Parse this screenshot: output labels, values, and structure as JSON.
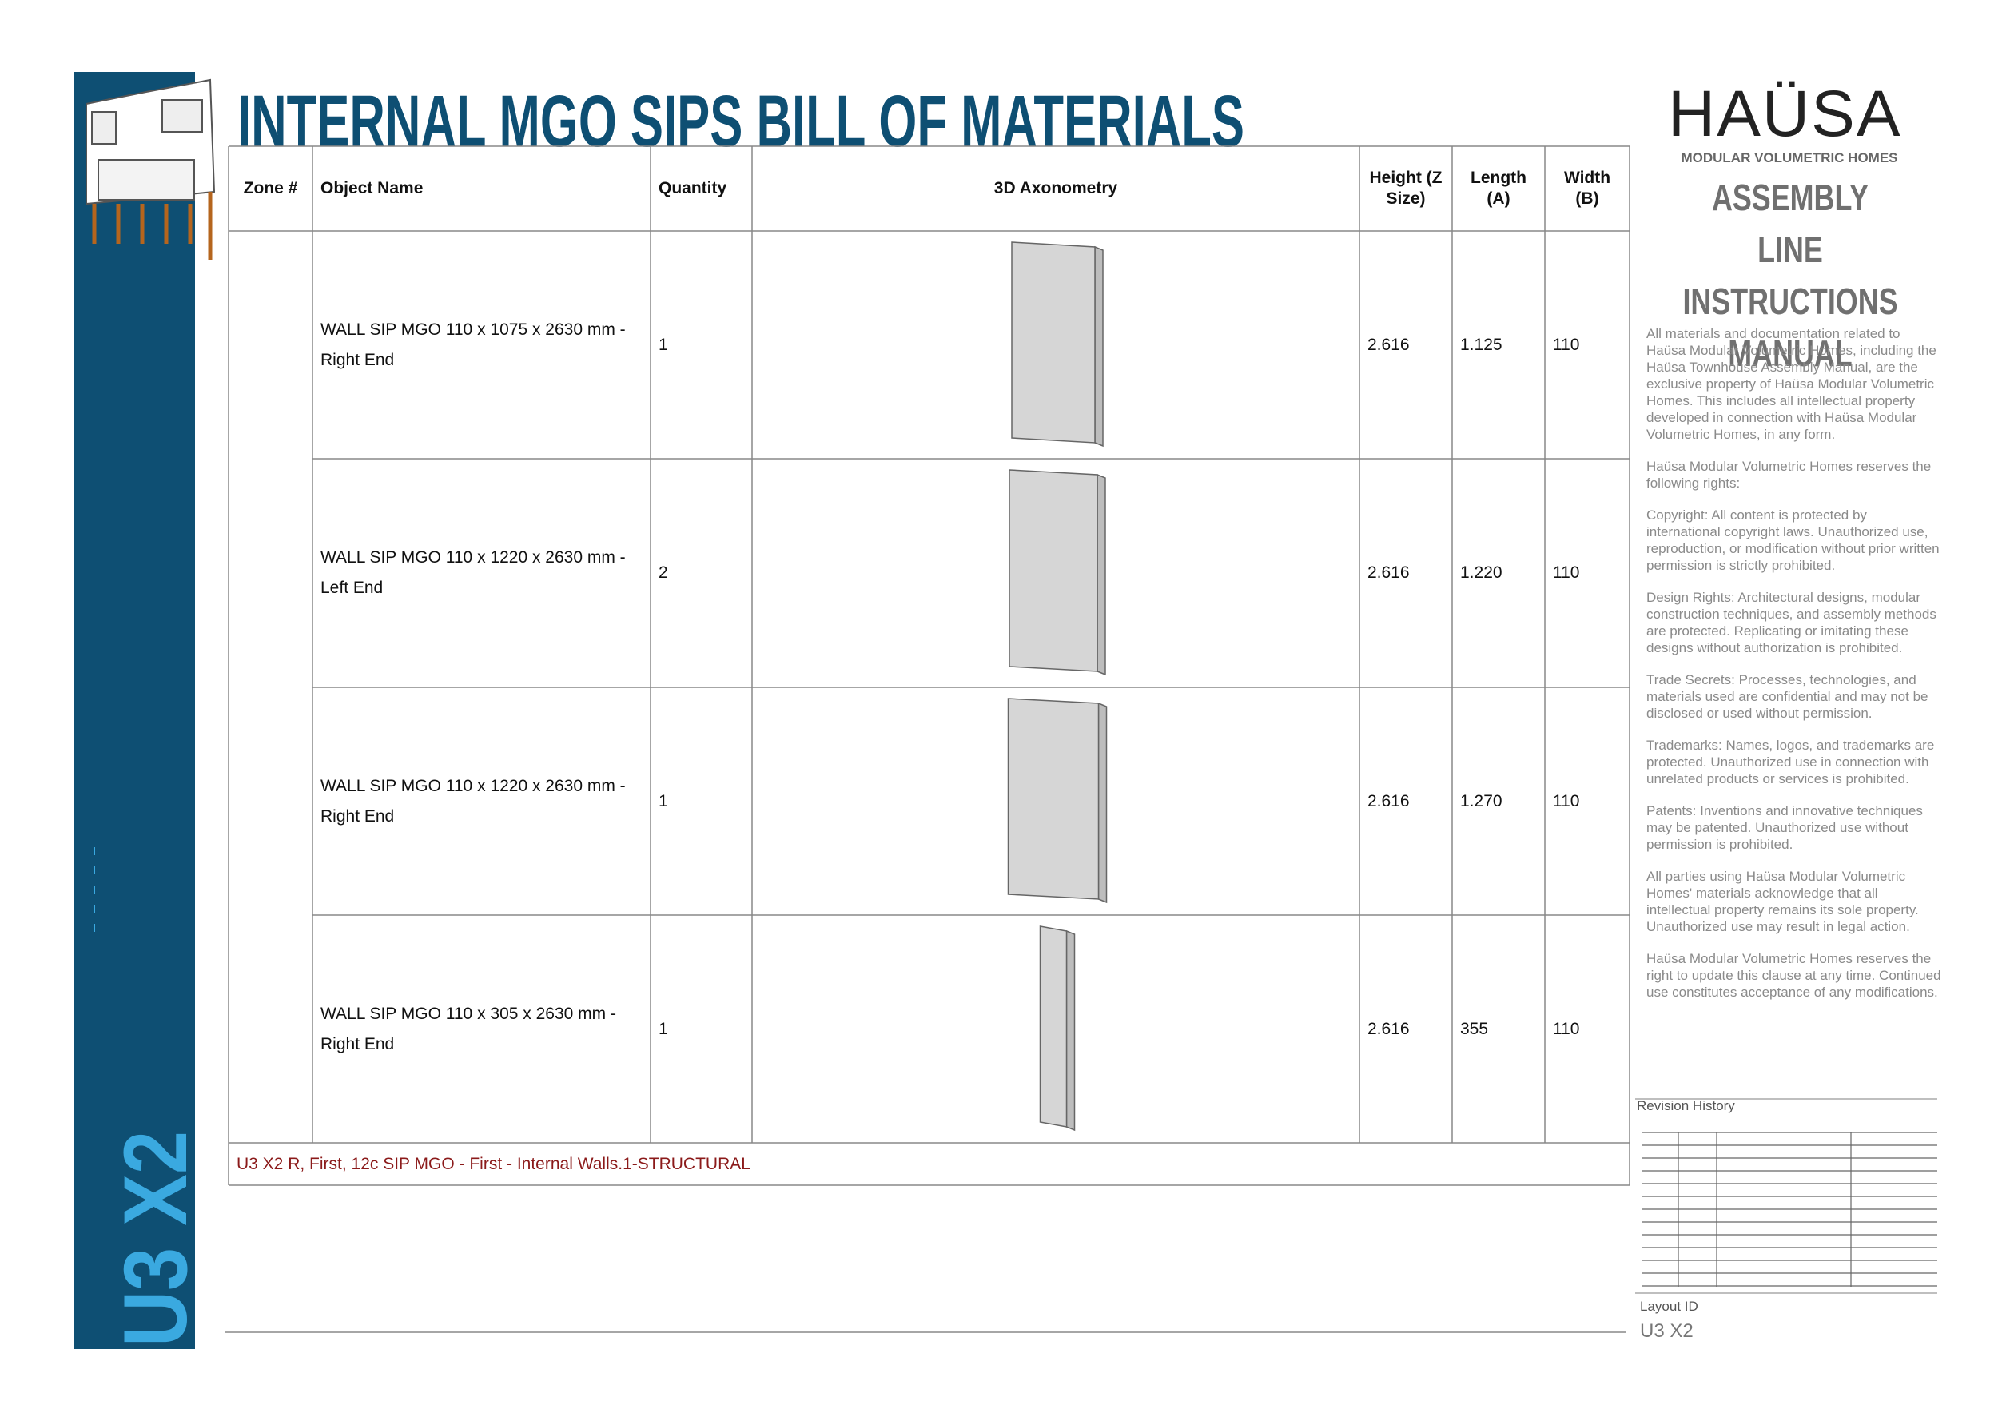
{
  "header": {
    "title": "INTERNAL MGO SIPS BILL OF MATERIALS",
    "sidebar_label": "U3 X2"
  },
  "table": {
    "columns": [
      "Zone #",
      "Object Name",
      "Quantity",
      "3D Axonometry",
      "Height (Z Size)",
      "Length (A)",
      "Width (B)"
    ],
    "rows": [
      {
        "name": "WALL SIP MGO 110 x 1075 x 2630 mm - Right End",
        "quantity": "1",
        "height": "2.616",
        "length": "1.125",
        "width": "110"
      },
      {
        "name": "WALL SIP MGO 110 x 1220 x 2630 mm - Left End",
        "quantity": "2",
        "height": "2.616",
        "length": "1.220",
        "width": "110"
      },
      {
        "name": "WALL SIP MGO 110 x 1220 x 2630 mm - Right End",
        "quantity": "1",
        "height": "2.616",
        "length": "1.270",
        "width": "110"
      },
      {
        "name": "WALL SIP MGO 110 x 305 x 2630 mm - Right End",
        "quantity": "1",
        "height": "2.616",
        "length": "355",
        "width": "110"
      }
    ],
    "footer": "U3 X2 R, First, 12c SIP MGO - First - Internal Walls.1-STRUCTURAL"
  },
  "panel": {
    "logo": "HAÜSA",
    "logo_subtitle": "MODULAR VOLUMETRIC HOMES",
    "manual_title": [
      "ASSEMBLY LINE",
      "INSTRUCTIONS",
      "MANUAL"
    ],
    "legal": [
      "All materials and documentation related to Haüsa Modular Volumetric Homes, including the Haüsa Townhouse Assembly Manual, are the exclusive property of Haüsa Modular Volumetric Homes. This includes all intellectual property developed in connection with Haüsa Modular Volumetric Homes, in any form.",
      "Haüsa Modular Volumetric Homes reserves the following rights:",
      "Copyright: All content is protected by international copyright laws. Unauthorized use, reproduction, or modification without prior written permission is strictly prohibited.",
      "Design Rights: Architectural designs, modular construction techniques, and assembly methods are protected. Replicating or imitating these designs without authorization is prohibited.",
      "Trade Secrets: Processes, technologies, and materials used are confidential and may not be disclosed or used without permission.",
      "Trademarks: Names, logos, and trademarks are protected. Unauthorized use in connection with unrelated products or services is prohibited.",
      "Patents: Inventions and innovative techniques may be patented. Unauthorized use without permission is prohibited.",
      "All parties using Haüsa Modular Volumetric Homes' materials acknowledge that all intellectual property remains its sole property. Unauthorized use may result in legal action.",
      "Haüsa Modular Volumetric Homes reserves the right to update this clause at any time. Continued use constitutes acceptance of any modifications."
    ],
    "revision_label": "Revision History",
    "layout_label": "Layout ID",
    "layout_id": "U3 X2"
  }
}
